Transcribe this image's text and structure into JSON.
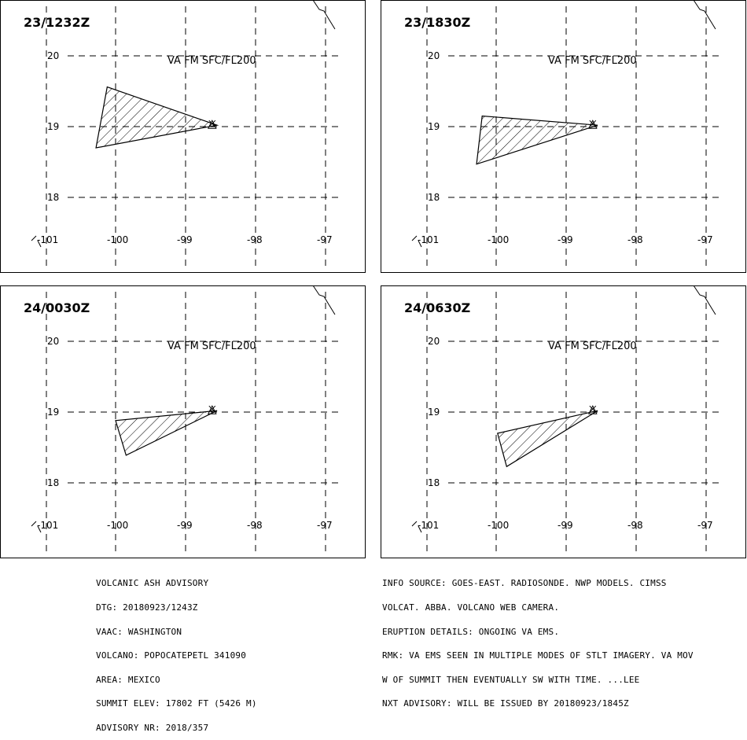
{
  "panels": [
    {
      "time": "23/1232Z",
      "va_label": "VA FM SFC/FL200",
      "polygon": [
        [
          -98.55,
          19.02
        ],
        [
          -100.12,
          19.56
        ],
        [
          -100.28,
          18.7
        ],
        [
          -98.55,
          19.02
        ]
      ]
    },
    {
      "time": "23/1830Z",
      "va_label": "VA FM SFC/FL200",
      "polygon": [
        [
          -98.55,
          19.02
        ],
        [
          -100.2,
          19.15
        ],
        [
          -100.28,
          18.47
        ],
        [
          -98.55,
          19.02
        ]
      ]
    },
    {
      "time": "24/0030Z",
      "va_label": "VA FM SFC/FL200",
      "polygon": [
        [
          -98.55,
          19.02
        ],
        [
          -100.0,
          18.88
        ],
        [
          -99.85,
          18.39
        ],
        [
          -98.55,
          19.02
        ]
      ]
    },
    {
      "time": "24/0630Z",
      "va_label": "VA FM SFC/FL200",
      "polygon": [
        [
          -98.55,
          19.02
        ],
        [
          -99.98,
          18.7
        ],
        [
          -99.85,
          18.23
        ],
        [
          -98.55,
          19.02
        ]
      ]
    }
  ],
  "axes": {
    "lon_ticks": [
      "-101",
      "-100",
      "-99",
      "-98",
      "-97"
    ],
    "lat_ticks": [
      "20",
      "19",
      "18"
    ]
  },
  "volcano": {
    "lon": -98.62,
    "lat": 19.02
  },
  "advisory_left": [
    "VOLCANIC ASH ADVISORY",
    "DTG: 20180923/1243Z",
    "VAAC: WASHINGTON",
    "VOLCANO: POPOCATEPETL 341090",
    "AREA: MEXICO",
    "SUMMIT ELEV: 17802 FT (5426 M)",
    "ADVISORY NR: 2018/357"
  ],
  "advisory_right": [
    "INFO SOURCE: GOES-EAST. RADIOSONDE. NWP MODELS. CIMSS",
    "VOLCAT. ABBA. VOLCANO WEB CAMERA.",
    "ERUPTION DETAILS: ONGOING VA EMS.",
    "RMK: VA EMS SEEN IN MULTIPLE MODES OF STLT IMAGERY. VA MOV",
    "W OF SUMMIT THEN EVENTUALLY SW WITH TIME. ...LEE",
    "NXT ADVISORY: WILL BE ISSUED BY 20180923/1845Z"
  ],
  "colors": {
    "line": "#000000",
    "background": "#ffffff"
  }
}
